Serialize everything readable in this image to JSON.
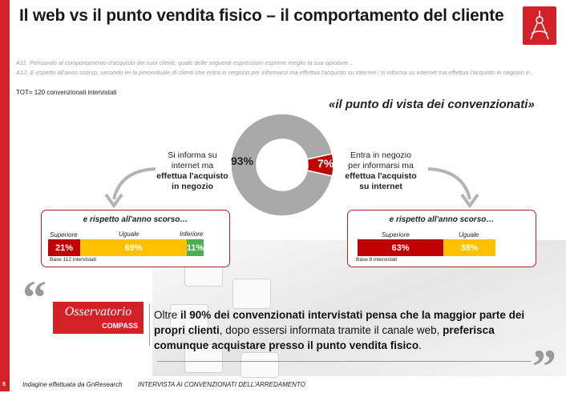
{
  "header": {
    "title": "Il web vs il punto vendita fisico – il comportamento del cliente"
  },
  "questions": {
    "q1": "A11. Pensando al comportamento d'acquisto dei suoi clienti, quale delle seguenti espressioni esprime meglio la sua opinione…",
    "q2": "A12. E rispetto all'anno scorso, secondo lei la percentuale di clienti che entra in negozio per informarsi ma effettua l'acquisto su internet / si informa su internet ma effettua l'acquisto in negozio è…",
    "tot": "TOT= 120 convenzionati intervistati"
  },
  "pov_title": "«il punto di vista dei convenzionati»",
  "chart_data": [
    {
      "type": "pie",
      "categories": [
        "Si informa su internet ma effettua l'acquisto in negozio",
        "Entra in negozio per informarsi ma effettua l'acquisto su internet"
      ],
      "values": [
        93,
        7
      ],
      "colors": [
        "#a9a9a9",
        "#c00000"
      ]
    },
    {
      "type": "bar",
      "title": "e rispetto all'anno scorso…",
      "categories": [
        "Superiore",
        "Uguale",
        "Inferiore"
      ],
      "values": [
        21,
        69,
        11
      ],
      "colors": [
        "#c00000",
        "#ffc000",
        "#4caf50"
      ],
      "base": "Base 112 intervistati"
    },
    {
      "type": "bar",
      "title": "e rispetto all'anno scorso…",
      "categories": [
        "Superiore",
        "Uguale"
      ],
      "values": [
        63,
        38
      ],
      "colors": [
        "#c00000",
        "#ffc000"
      ],
      "base": "Base 8 intervistati"
    }
  ],
  "donut_labels": {
    "big": "93%",
    "small": "7%"
  },
  "left_text": {
    "line1": "Si informa su",
    "line2": "internet ma",
    "line3": "effettua l'acquisto",
    "line4": "in negozio"
  },
  "right_text": {
    "line1": "Entra in negozio",
    "line2": "per informarsi ma",
    "line3": "effettua l'acquisto",
    "line4": "su internet"
  },
  "left_box": {
    "title": "e rispetto all'anno scorso…",
    "labels": [
      "Superiore",
      "Uguale",
      "Inferiore"
    ],
    "values": [
      "21%",
      "69%",
      "11%"
    ],
    "base": "Base 112 intervistati"
  },
  "right_box": {
    "title": "e rispetto all'anno scorso…",
    "labels": [
      "Superiore",
      "Uguale"
    ],
    "values": [
      "63%",
      "38%"
    ],
    "base": "Base 8 intervistati"
  },
  "logo_box": {
    "line1": "Osservatorio",
    "line2": "COMPASS"
  },
  "conclusion": {
    "p1": "Oltre ",
    "b1": "il 90% dei convenzionati intervistati pensa che la maggior parte dei propri clienti",
    "p2": ", dopo essersi informata tramite il canale web, ",
    "b2": "preferisca comunque acquistare presso il punto vendita fisico",
    "p3": "."
  },
  "footer": {
    "left": "Indagine effettuata da GnResearch",
    "right": "INTERVISTA AI CONVENZIONATI DELL'ARREDAMENTO",
    "page": "5"
  },
  "quotes": {
    "open": "“",
    "close": "”"
  },
  "colors": {
    "brand_red": "#d42027",
    "dark_red": "#c00000",
    "amber": "#ffc000",
    "green": "#4caf50",
    "grey": "#a9a9a9"
  }
}
